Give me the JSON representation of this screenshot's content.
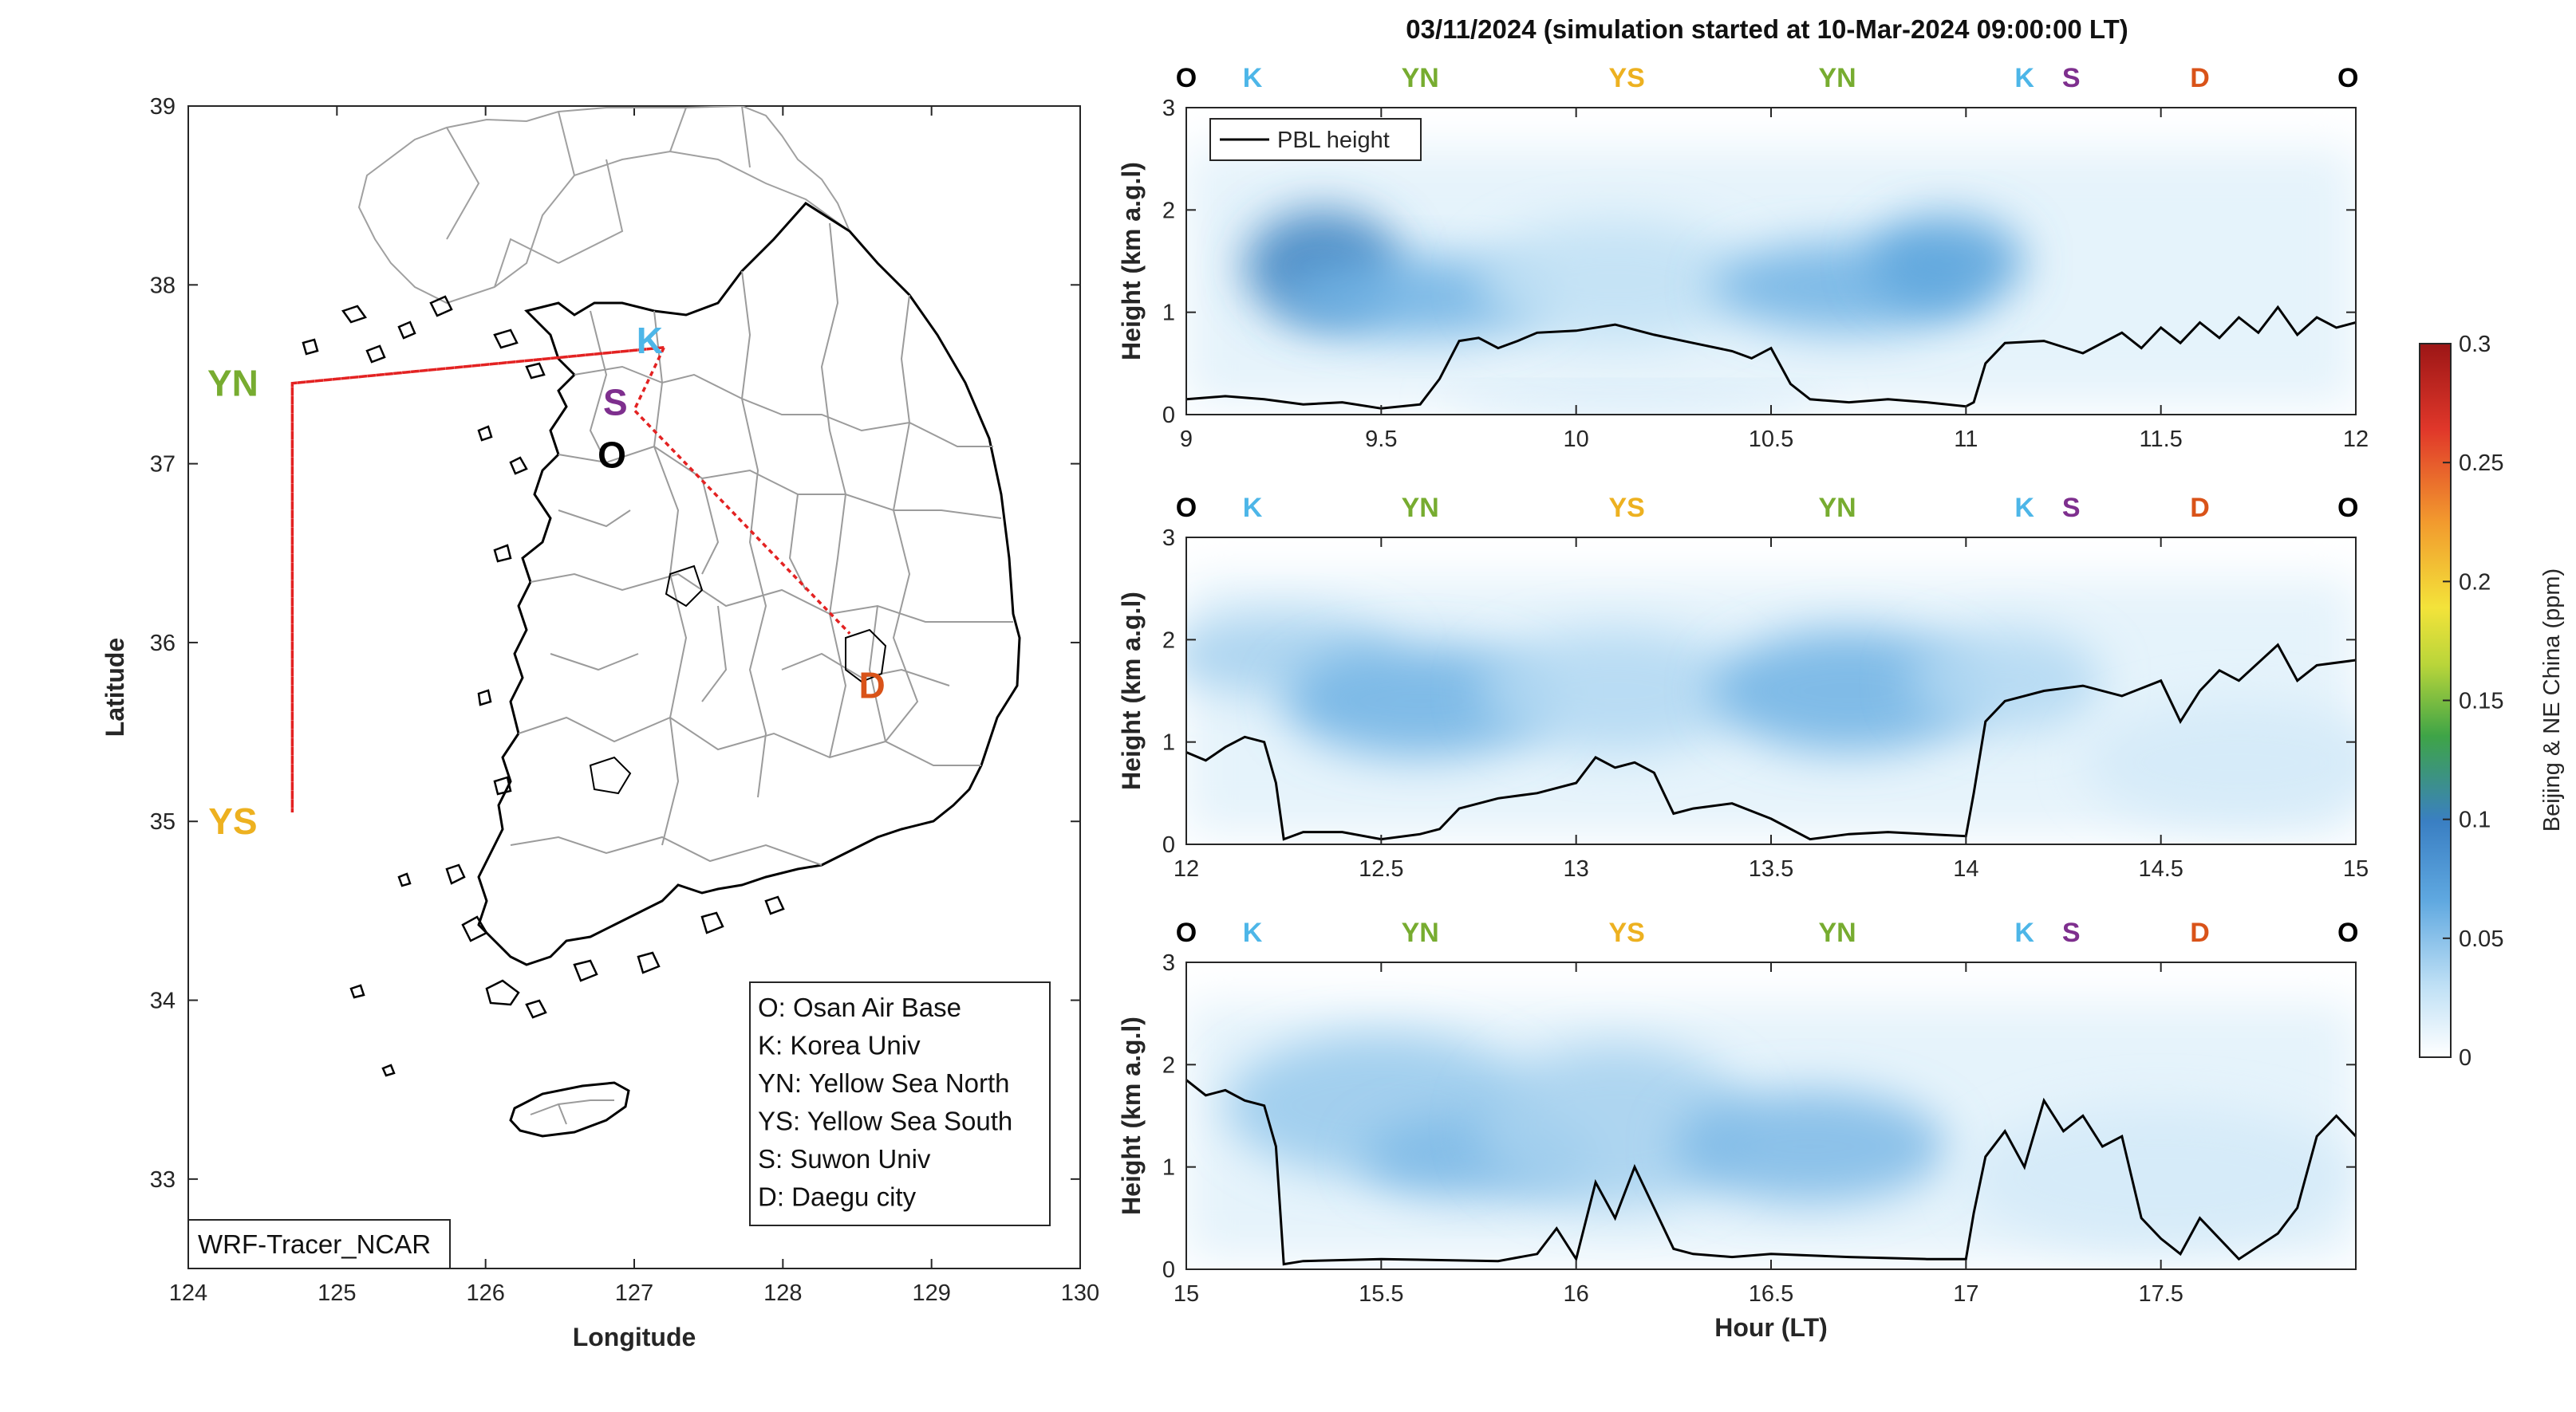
{
  "figure_title": "03/11/2024 (simulation started at 10-Mar-2024 09:00:00 LT)",
  "map": {
    "xlabel": "Longitude",
    "ylabel": "Latitude",
    "xticks": [
      "124",
      "125",
      "126",
      "127",
      "128",
      "129",
      "130"
    ],
    "yticks": [
      "33",
      "34",
      "35",
      "36",
      "37",
      "38",
      "39"
    ],
    "xlim": [
      124,
      130
    ],
    "ylim": [
      32.5,
      39
    ],
    "source_label": "WRF-Tracer_NCAR",
    "legend": [
      "O: Osan Air Base",
      "K: Korea Univ",
      "YN: Yellow Sea North",
      "YS: Yellow Sea South",
      "S: Suwon Univ",
      "D: Daegu city"
    ],
    "sites": [
      {
        "id": "O",
        "label": "O",
        "lon": 126.85,
        "lat": 37.05,
        "color": "#000000"
      },
      {
        "id": "K",
        "label": "K",
        "lon": 127.05,
        "lat": 37.6,
        "color": "#4DB6E8"
      },
      {
        "id": "S",
        "label": "S",
        "lon": 126.9,
        "lat": 37.3,
        "color": "#7E2F8E"
      },
      {
        "id": "YN",
        "label": "YN",
        "lon": 124.3,
        "lat": 37.45,
        "color": "#77AC30"
      },
      {
        "id": "YS",
        "label": "YS",
        "lon": 124.3,
        "lat": 35.0,
        "color": "#EDB120"
      },
      {
        "id": "D",
        "label": "D",
        "lon": 128.6,
        "lat": 35.85,
        "color": "#D95319"
      }
    ],
    "flight_path": [
      [
        127.2,
        37.65
      ],
      [
        124.7,
        37.45
      ],
      [
        124.7,
        35.05
      ],
      [
        124.7,
        37.45
      ],
      [
        127.2,
        37.65
      ],
      [
        127.0,
        37.3
      ],
      [
        128.45,
        36.05
      ],
      [
        127.0,
        37.3
      ],
      [
        127.2,
        37.65
      ]
    ]
  },
  "colorbar": {
    "label": "Beijing & NE China (ppm)",
    "ticks": [
      "0",
      "0.05",
      "0.1",
      "0.15",
      "0.2",
      "0.25",
      "0.3"
    ],
    "range": [
      0,
      0.3
    ]
  },
  "panel_common": {
    "ylabel": "Height (km a.g.l)",
    "xlabel": "Hour (LT)",
    "yticks": [
      "0",
      "1",
      "2",
      "3"
    ],
    "legend": "PBL height"
  },
  "chart_data": [
    {
      "type": "heatmap",
      "title": "03/11/2024 (simulation started at 10-Mar-2024 09:00:00 LT)",
      "xlim": [
        9,
        12
      ],
      "ylim": [
        0,
        3
      ],
      "xticks": [
        "9",
        "9.5",
        "10",
        "10.5",
        "11",
        "11.5",
        "12"
      ],
      "sites_top": [
        {
          "label": "O",
          "x": 9.0
        },
        {
          "label": "K",
          "x": 9.17
        },
        {
          "label": "YN",
          "x": 9.6
        },
        {
          "label": "YS",
          "x": 10.13
        },
        {
          "label": "YN",
          "x": 10.67
        },
        {
          "label": "K",
          "x": 11.15
        },
        {
          "label": "S",
          "x": 11.27
        },
        {
          "label": "D",
          "x": 11.6
        },
        {
          "label": "O",
          "x": 11.98
        }
      ],
      "pbl_height_km": {
        "x": [
          9.0,
          9.1,
          9.2,
          9.3,
          9.4,
          9.5,
          9.6,
          9.65,
          9.7,
          9.75,
          9.8,
          9.85,
          9.9,
          10.0,
          10.1,
          10.2,
          10.3,
          10.4,
          10.45,
          10.5,
          10.55,
          10.6,
          10.7,
          10.8,
          10.9,
          11.0,
          11.02,
          11.05,
          11.1,
          11.2,
          11.3,
          11.4,
          11.45,
          11.5,
          11.55,
          11.6,
          11.65,
          11.7,
          11.75,
          11.8,
          11.85,
          11.9,
          11.95,
          12.0
        ],
        "y": [
          0.15,
          0.18,
          0.15,
          0.1,
          0.12,
          0.06,
          0.1,
          0.35,
          0.72,
          0.75,
          0.65,
          0.72,
          0.8,
          0.82,
          0.88,
          0.78,
          0.7,
          0.62,
          0.55,
          0.65,
          0.3,
          0.15,
          0.12,
          0.15,
          0.12,
          0.08,
          0.12,
          0.5,
          0.7,
          0.72,
          0.6,
          0.8,
          0.65,
          0.85,
          0.7,
          0.9,
          0.75,
          0.95,
          0.8,
          1.05,
          0.78,
          0.95,
          0.85,
          0.9
        ]
      },
      "tracer_blobs": [
        {
          "x": 9.35,
          "y": 1.45,
          "rx": 0.2,
          "ry": 0.55,
          "c": 0.1
        },
        {
          "x": 9.6,
          "y": 1.15,
          "rx": 0.35,
          "ry": 0.4,
          "c": 0.06
        },
        {
          "x": 10.1,
          "y": 1.3,
          "rx": 0.35,
          "ry": 0.6,
          "c": 0.03
        },
        {
          "x": 10.7,
          "y": 1.25,
          "rx": 0.35,
          "ry": 0.45,
          "c": 0.06
        },
        {
          "x": 10.95,
          "y": 1.5,
          "rx": 0.2,
          "ry": 0.45,
          "c": 0.07
        },
        {
          "x": 10.15,
          "y": 0.12,
          "rx": 0.5,
          "ry": 0.12,
          "c": 0.025
        }
      ]
    },
    {
      "type": "heatmap",
      "xlim": [
        12,
        15
      ],
      "ylim": [
        0,
        3
      ],
      "xticks": [
        "12",
        "12.5",
        "13",
        "13.5",
        "14",
        "14.5",
        "15"
      ],
      "sites_top": [
        {
          "label": "O",
          "x": 12.0
        },
        {
          "label": "K",
          "x": 12.17
        },
        {
          "label": "YN",
          "x": 12.6
        },
        {
          "label": "YS",
          "x": 13.13
        },
        {
          "label": "YN",
          "x": 13.67
        },
        {
          "label": "K",
          "x": 14.15
        },
        {
          "label": "S",
          "x": 14.27
        },
        {
          "label": "D",
          "x": 14.6
        },
        {
          "label": "O",
          "x": 14.98
        }
      ],
      "pbl_height_km": {
        "x": [
          12.0,
          12.05,
          12.1,
          12.15,
          12.2,
          12.23,
          12.25,
          12.3,
          12.4,
          12.5,
          12.6,
          12.65,
          12.7,
          12.8,
          12.9,
          13.0,
          13.05,
          13.1,
          13.15,
          13.2,
          13.25,
          13.3,
          13.4,
          13.5,
          13.6,
          13.7,
          13.8,
          13.9,
          14.0,
          14.02,
          14.05,
          14.1,
          14.2,
          14.3,
          14.4,
          14.5,
          14.55,
          14.6,
          14.65,
          14.7,
          14.8,
          14.85,
          14.9,
          15.0
        ],
        "y": [
          0.9,
          0.82,
          0.95,
          1.05,
          1.0,
          0.6,
          0.05,
          0.12,
          0.12,
          0.05,
          0.1,
          0.15,
          0.35,
          0.45,
          0.5,
          0.6,
          0.85,
          0.75,
          0.8,
          0.7,
          0.3,
          0.35,
          0.4,
          0.25,
          0.05,
          0.1,
          0.12,
          0.1,
          0.08,
          0.5,
          1.2,
          1.4,
          1.5,
          1.55,
          1.45,
          1.6,
          1.2,
          1.5,
          1.7,
          1.6,
          1.95,
          1.6,
          1.75,
          1.8
        ]
      },
      "tracer_blobs": [
        {
          "x": 12.25,
          "y": 1.85,
          "rx": 0.3,
          "ry": 0.4,
          "c": 0.04
        },
        {
          "x": 12.6,
          "y": 1.4,
          "rx": 0.35,
          "ry": 0.55,
          "c": 0.06
        },
        {
          "x": 13.1,
          "y": 1.5,
          "rx": 0.35,
          "ry": 0.6,
          "c": 0.035
        },
        {
          "x": 13.7,
          "y": 1.5,
          "rx": 0.35,
          "ry": 0.6,
          "c": 0.06
        },
        {
          "x": 14.1,
          "y": 1.6,
          "rx": 0.25,
          "ry": 0.5,
          "c": 0.035
        },
        {
          "x": 14.7,
          "y": 0.8,
          "rx": 0.4,
          "ry": 0.6,
          "c": 0.02
        }
      ]
    },
    {
      "type": "heatmap",
      "xlim": [
        15,
        18
      ],
      "ylim": [
        0,
        3
      ],
      "xlabel": "Hour (LT)",
      "xticks": [
        "15",
        "15.5",
        "16",
        "16.5",
        "17",
        "17.5"
      ],
      "sites_top": [
        {
          "label": "O",
          "x": 15.0
        },
        {
          "label": "K",
          "x": 15.17
        },
        {
          "label": "YN",
          "x": 15.6
        },
        {
          "label": "YS",
          "x": 16.13
        },
        {
          "label": "YN",
          "x": 16.67
        },
        {
          "label": "K",
          "x": 17.15
        },
        {
          "label": "S",
          "x": 17.27
        },
        {
          "label": "D",
          "x": 17.6
        },
        {
          "label": "O",
          "x": 17.98
        }
      ],
      "pbl_height_km": {
        "x": [
          15.0,
          15.05,
          15.1,
          15.15,
          15.2,
          15.23,
          15.25,
          15.3,
          15.5,
          15.8,
          15.9,
          15.95,
          16.0,
          16.05,
          16.1,
          16.15,
          16.2,
          16.25,
          16.3,
          16.4,
          16.5,
          16.7,
          16.9,
          17.0,
          17.02,
          17.05,
          17.1,
          17.15,
          17.2,
          17.25,
          17.3,
          17.35,
          17.4,
          17.45,
          17.5,
          17.55,
          17.6,
          17.7,
          17.8,
          17.85,
          17.9,
          17.95,
          18.0
        ],
        "y": [
          1.85,
          1.7,
          1.75,
          1.65,
          1.6,
          1.2,
          0.05,
          0.08,
          0.1,
          0.08,
          0.15,
          0.4,
          0.1,
          0.85,
          0.5,
          1.0,
          0.6,
          0.2,
          0.15,
          0.12,
          0.15,
          0.12,
          0.1,
          0.1,
          0.55,
          1.1,
          1.35,
          1.0,
          1.65,
          1.35,
          1.5,
          1.2,
          1.3,
          0.5,
          0.3,
          0.15,
          0.5,
          0.1,
          0.35,
          0.6,
          1.3,
          1.5,
          1.3
        ]
      },
      "tracer_blobs": [
        {
          "x": 15.5,
          "y": 1.6,
          "rx": 0.4,
          "ry": 0.7,
          "c": 0.045
        },
        {
          "x": 15.75,
          "y": 1.1,
          "rx": 0.3,
          "ry": 0.4,
          "c": 0.055
        },
        {
          "x": 16.1,
          "y": 1.4,
          "rx": 0.35,
          "ry": 0.8,
          "c": 0.04
        },
        {
          "x": 16.6,
          "y": 1.2,
          "rx": 0.35,
          "ry": 0.55,
          "c": 0.055
        },
        {
          "x": 17.5,
          "y": 0.9,
          "rx": 0.5,
          "ry": 0.7,
          "c": 0.02
        }
      ]
    }
  ]
}
